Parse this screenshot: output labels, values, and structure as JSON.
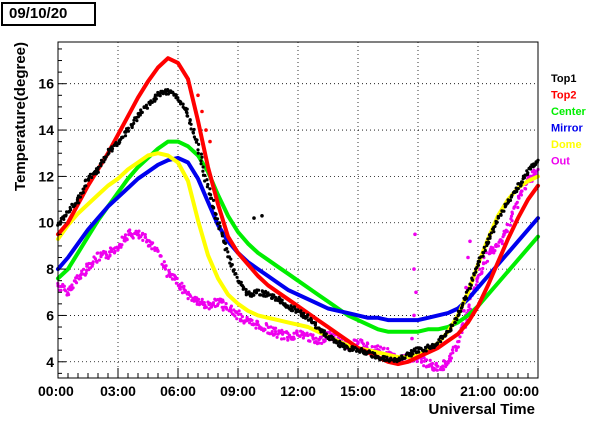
{
  "header": {
    "date": "09/10/20"
  },
  "chart_data": {
    "type": "line",
    "title": "",
    "xlabel": "Universal Time",
    "ylabel": "Temperature(degree)",
    "xlim": [
      0,
      24
    ],
    "ylim": [
      3.3,
      17.8
    ],
    "x_ticks": [
      0,
      3,
      6,
      9,
      12,
      15,
      18,
      21,
      24
    ],
    "x_tick_labels": [
      "00:00",
      "03:00",
      "06:00",
      "09:00",
      "12:00",
      "15:00",
      "18:00",
      "21:00",
      "00:00"
    ],
    "y_ticks": [
      4,
      6,
      8,
      10,
      12,
      14,
      16
    ],
    "y_tick_labels": [
      "4",
      "6",
      "8",
      "10",
      "12",
      "14",
      "16"
    ],
    "grid": "dotted",
    "legend_position": "right",
    "series": [
      {
        "name": "Top1",
        "color": "#000000",
        "style": "markers",
        "x": [
          0.0,
          0.5,
          1.0,
          1.5,
          2.0,
          2.5,
          3.0,
          3.5,
          4.0,
          4.5,
          5.0,
          5.5,
          6.0,
          6.5,
          7.0,
          7.5,
          8.0,
          8.5,
          9.0,
          9.5,
          10.0,
          10.5,
          11.0,
          11.5,
          12.0,
          12.5,
          13.0,
          13.5,
          14.0,
          14.5,
          15.0,
          15.5,
          16.0,
          16.5,
          17.0,
          17.5,
          18.0,
          18.5,
          19.0,
          19.5,
          20.0,
          20.5,
          21.0,
          21.5,
          22.0,
          22.5,
          23.0,
          23.5,
          24.0
        ],
        "values": [
          9.9,
          10.4,
          11.0,
          11.9,
          12.3,
          13.0,
          13.5,
          14.0,
          14.6,
          15.1,
          15.5,
          15.7,
          15.4,
          14.7,
          13.3,
          11.5,
          10.0,
          8.6,
          7.5,
          6.9,
          7.0,
          6.9,
          6.7,
          6.4,
          6.2,
          5.9,
          5.5,
          5.1,
          4.8,
          4.6,
          4.5,
          4.4,
          4.2,
          4.1,
          4.1,
          4.3,
          4.5,
          4.6,
          4.8,
          5.3,
          6.0,
          7.0,
          8.2,
          9.2,
          10.2,
          10.9,
          11.6,
          12.2,
          12.7
        ]
      },
      {
        "name": "Top2",
        "color": "#ff0000",
        "style": "line",
        "x": [
          0.0,
          0.5,
          1.0,
          1.5,
          2.0,
          2.5,
          3.0,
          3.5,
          4.0,
          4.5,
          5.0,
          5.5,
          6.0,
          6.5,
          7.0,
          7.5,
          8.0,
          8.5,
          9.0,
          9.5,
          10.0,
          10.5,
          11.0,
          11.5,
          12.0,
          12.5,
          13.0,
          13.5,
          14.0,
          14.5,
          15.0,
          15.5,
          16.0,
          16.5,
          17.0,
          17.5,
          18.0,
          18.5,
          19.0,
          19.5,
          20.0,
          20.5,
          21.0,
          21.5,
          22.0,
          22.5,
          23.0,
          23.5,
          24.0
        ],
        "values": [
          9.5,
          10.0,
          10.8,
          11.6,
          12.3,
          13.0,
          13.8,
          14.6,
          15.4,
          16.1,
          16.7,
          17.1,
          16.9,
          16.2,
          14.4,
          12.4,
          10.8,
          9.4,
          8.7,
          8.2,
          7.7,
          7.3,
          7.0,
          6.7,
          6.4,
          6.1,
          5.8,
          5.5,
          5.2,
          4.9,
          4.6,
          4.4,
          4.2,
          4.0,
          3.9,
          4.0,
          4.2,
          4.4,
          4.6,
          4.9,
          5.2,
          5.7,
          6.4,
          7.3,
          8.3,
          9.3,
          10.2,
          11.0,
          11.6
        ]
      },
      {
        "name": "Center",
        "color": "#00ee00",
        "style": "line",
        "x": [
          0.0,
          0.5,
          1.0,
          1.5,
          2.0,
          2.5,
          3.0,
          3.5,
          4.0,
          4.5,
          5.0,
          5.5,
          6.0,
          6.5,
          7.0,
          7.5,
          8.0,
          8.5,
          9.0,
          9.5,
          10.0,
          10.5,
          11.0,
          11.5,
          12.0,
          12.5,
          13.0,
          13.5,
          14.0,
          14.5,
          15.0,
          15.5,
          16.0,
          16.5,
          17.0,
          17.5,
          18.0,
          18.5,
          19.0,
          19.5,
          20.0,
          20.5,
          21.0,
          21.5,
          22.0,
          22.5,
          23.0,
          23.5,
          24.0
        ],
        "values": [
          7.6,
          8.0,
          8.7,
          9.4,
          10.1,
          10.7,
          11.3,
          11.9,
          12.4,
          12.8,
          13.2,
          13.5,
          13.5,
          13.3,
          12.9,
          12.2,
          11.2,
          10.3,
          9.6,
          9.1,
          8.7,
          8.4,
          8.1,
          7.8,
          7.5,
          7.2,
          6.9,
          6.6,
          6.3,
          6.0,
          5.8,
          5.6,
          5.4,
          5.3,
          5.3,
          5.3,
          5.3,
          5.4,
          5.4,
          5.5,
          5.7,
          6.0,
          6.4,
          6.9,
          7.4,
          7.9,
          8.4,
          8.9,
          9.4
        ]
      },
      {
        "name": "Mirror",
        "color": "#0000ee",
        "style": "line",
        "x": [
          0.0,
          0.5,
          1.0,
          1.5,
          2.0,
          2.5,
          3.0,
          3.5,
          4.0,
          4.5,
          5.0,
          5.5,
          6.0,
          6.5,
          7.0,
          7.5,
          8.0,
          8.5,
          9.0,
          9.5,
          10.0,
          10.5,
          11.0,
          11.5,
          12.0,
          12.5,
          13.0,
          13.5,
          14.0,
          14.5,
          15.0,
          15.5,
          16.0,
          16.5,
          17.0,
          17.5,
          18.0,
          18.5,
          19.0,
          19.5,
          20.0,
          20.5,
          21.0,
          21.5,
          22.0,
          22.5,
          23.0,
          23.5,
          24.0
        ],
        "values": [
          8.0,
          8.5,
          9.1,
          9.7,
          10.2,
          10.7,
          11.1,
          11.5,
          11.9,
          12.2,
          12.5,
          12.7,
          12.8,
          12.6,
          11.9,
          10.9,
          9.9,
          9.2,
          8.7,
          8.3,
          8.0,
          7.7,
          7.4,
          7.1,
          6.9,
          6.7,
          6.5,
          6.3,
          6.2,
          6.1,
          6.0,
          5.9,
          5.9,
          5.8,
          5.8,
          5.8,
          5.8,
          5.9,
          6.0,
          6.1,
          6.3,
          6.7,
          7.2,
          7.7,
          8.2,
          8.7,
          9.2,
          9.7,
          10.2
        ]
      },
      {
        "name": "Dome",
        "color": "#ffff00",
        "style": "line",
        "x": [
          0.0,
          0.5,
          1.0,
          1.5,
          2.0,
          2.5,
          3.0,
          3.5,
          4.0,
          4.5,
          5.0,
          5.5,
          6.0,
          6.5,
          7.0,
          7.5,
          8.0,
          8.5,
          9.0,
          9.5,
          10.0,
          10.5,
          11.0,
          11.5,
          12.0,
          12.5,
          13.0,
          13.5,
          14.0,
          14.5,
          15.0,
          15.5,
          16.0,
          16.5,
          17.0,
          17.5,
          18.0,
          18.5,
          19.0,
          19.5,
          20.0,
          20.5,
          21.0,
          21.5,
          22.0,
          22.5,
          23.0,
          23.5,
          24.0
        ],
        "values": [
          9.3,
          9.9,
          10.4,
          10.8,
          11.2,
          11.6,
          11.9,
          12.3,
          12.6,
          12.9,
          13.0,
          12.9,
          12.6,
          11.8,
          10.1,
          8.6,
          7.6,
          6.9,
          6.5,
          6.2,
          6.0,
          5.9,
          5.8,
          5.7,
          5.6,
          5.5,
          5.3,
          5.1,
          4.9,
          4.7,
          4.6,
          4.5,
          4.4,
          4.3,
          4.2,
          4.2,
          4.3,
          4.5,
          4.8,
          5.3,
          6.0,
          7.0,
          8.2,
          9.3,
          10.3,
          11.0,
          11.5,
          11.8,
          12.0
        ]
      },
      {
        "name": "Out",
        "color": "#ee00ee",
        "style": "markers",
        "x": [
          0.0,
          0.5,
          1.0,
          1.5,
          2.0,
          2.5,
          3.0,
          3.5,
          4.0,
          4.5,
          5.0,
          5.5,
          6.0,
          6.5,
          7.0,
          7.5,
          8.0,
          8.5,
          9.0,
          9.5,
          10.0,
          10.5,
          11.0,
          11.5,
          12.0,
          12.5,
          13.0,
          13.5,
          14.0,
          14.5,
          15.0,
          15.5,
          16.0,
          16.5,
          17.0,
          17.5,
          18.0,
          18.5,
          19.0,
          19.5,
          20.0,
          20.5,
          21.0,
          21.5,
          22.0,
          22.5,
          23.0,
          23.5,
          24.0
        ],
        "values": [
          7.3,
          7.0,
          7.6,
          8.1,
          8.5,
          8.6,
          9.0,
          9.5,
          9.5,
          9.2,
          8.8,
          7.8,
          7.4,
          6.9,
          6.6,
          6.4,
          6.6,
          6.3,
          6.0,
          5.7,
          5.6,
          5.4,
          5.2,
          5.1,
          5.2,
          5.1,
          4.8,
          5.2,
          5.0,
          4.7,
          4.8,
          4.6,
          4.5,
          4.4,
          4.0,
          4.2,
          4.1,
          3.9,
          3.7,
          4.0,
          4.7,
          6.2,
          7.6,
          8.6,
          9.0,
          9.8,
          11.0,
          11.8,
          12.3
        ]
      }
    ],
    "annotations": [
      {
        "series": "Top2",
        "note": "sparse markers",
        "x": [
          6.5,
          7.0,
          7.2,
          7.4,
          7.6
        ],
        "values": [
          16.2,
          15.5,
          14.8,
          14.0,
          13.5
        ]
      },
      {
        "series": "Top1",
        "note": "outliers",
        "x": [
          9.8,
          10.2
        ],
        "values": [
          10.2,
          10.3
        ]
      },
      {
        "series": "Out",
        "note": "spikes",
        "x": [
          17.7,
          17.8,
          17.9,
          17.8,
          17.85,
          20.3,
          20.4,
          20.5,
          20.6
        ],
        "values": [
          5.0,
          6.0,
          7.0,
          8.0,
          9.5,
          6.2,
          7.2,
          8.5,
          9.2
        ]
      }
    ]
  }
}
